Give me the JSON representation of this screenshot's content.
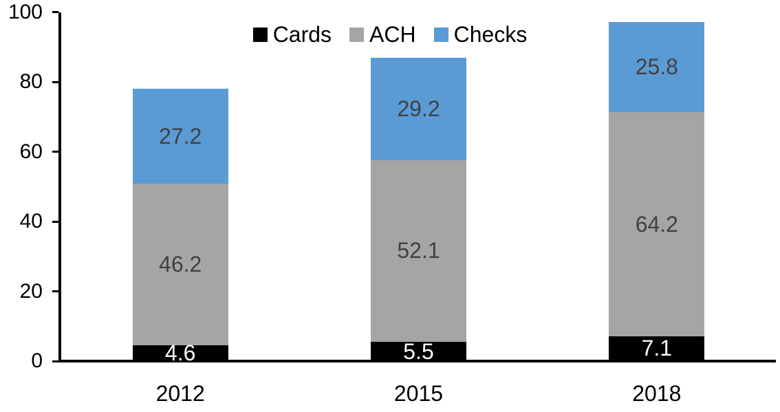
{
  "chart_data": {
    "type": "bar",
    "stacked": true,
    "categories": [
      "2012",
      "2015",
      "2018"
    ],
    "series": [
      {
        "name": "Cards",
        "values": [
          4.6,
          5.5,
          7.1
        ],
        "color": "#000000",
        "label_color": "#FFFFFF"
      },
      {
        "name": "ACH",
        "values": [
          46.2,
          52.1,
          64.2
        ],
        "color": "#A5A5A5",
        "label_color": "#404040"
      },
      {
        "name": "Checks",
        "values": [
          27.2,
          29.2,
          25.8
        ],
        "color": "#5B9BD5",
        "label_color": "#404040"
      }
    ],
    "data_labels": true,
    "xlabel": "",
    "ylabel": "",
    "ylim": [
      0,
      100
    ],
    "yticks": [
      0,
      20,
      40,
      60,
      80,
      100
    ],
    "grid": false,
    "legend_position": "top-center",
    "legend_labels": [
      "Cards",
      "ACH",
      "Checks"
    ],
    "axis_color": "#000000",
    "background_color": "#FFFFFF"
  }
}
